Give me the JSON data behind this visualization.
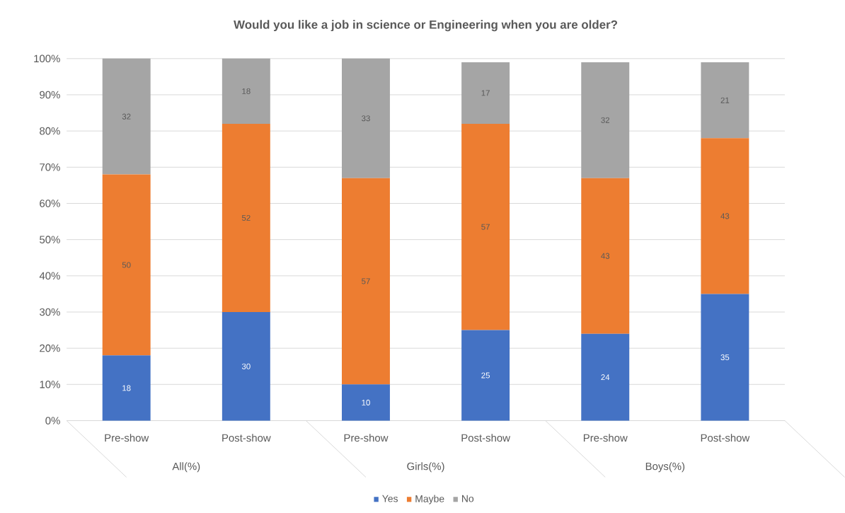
{
  "chart_data": {
    "type": "bar",
    "stacked": true,
    "title": "Would you like a job in science or Engineering when you are older?",
    "categories": [
      "Pre-show",
      "Post-show",
      "Pre-show",
      "Post-show",
      "Pre-show",
      "Post-show"
    ],
    "annotations": [
      "All(%)",
      "Girls(%)",
      "Boys(%)"
    ],
    "series": [
      {
        "name": "Yes",
        "color": "#4472c4",
        "values": [
          18,
          30,
          10,
          25,
          24,
          35
        ]
      },
      {
        "name": "Maybe",
        "color": "#ed7d31",
        "values": [
          50,
          52,
          57,
          57,
          43,
          43
        ]
      },
      {
        "name": "No",
        "color": "#a5a5a5",
        "values": [
          32,
          18,
          33,
          17,
          32,
          21
        ]
      }
    ],
    "ylim": [
      0,
      100
    ],
    "yticks": [
      {
        "value": 0,
        "label": "0%"
      },
      {
        "value": 10,
        "label": "10%"
      },
      {
        "value": 20,
        "label": "20%"
      },
      {
        "value": 30,
        "label": "30%"
      },
      {
        "value": 40,
        "label": "40%"
      },
      {
        "value": 50,
        "label": "50%"
      },
      {
        "value": 60,
        "label": "60%"
      },
      {
        "value": 70,
        "label": "70%"
      },
      {
        "value": 80,
        "label": "80%"
      },
      {
        "value": 90,
        "label": "90%"
      },
      {
        "value": 100,
        "label": "100%"
      }
    ],
    "grid": "y",
    "data_labels": true,
    "legend": "bottom"
  }
}
